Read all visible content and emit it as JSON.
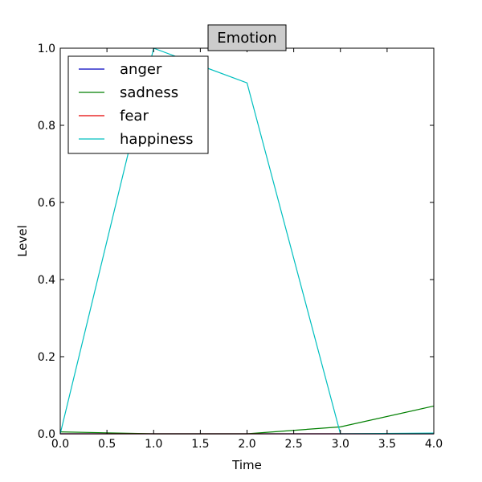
{
  "chart_data": {
    "type": "line",
    "title": "Emotion",
    "xlabel": "Time",
    "ylabel": "Level",
    "xlim": [
      0.0,
      4.0
    ],
    "ylim": [
      0.0,
      1.0
    ],
    "xticks": [
      "0.0",
      "0.5",
      "1.0",
      "1.5",
      "2.0",
      "2.5",
      "3.0",
      "3.5",
      "4.0"
    ],
    "yticks": [
      "0.0",
      "0.2",
      "0.4",
      "0.6",
      "0.8",
      "1.0"
    ],
    "grid": false,
    "legend_position": "top-left",
    "x": [
      0.0,
      1.0,
      2.0,
      3.0,
      4.0
    ],
    "series": [
      {
        "name": "anger",
        "color": "#0000bf",
        "values": [
          0.0,
          0.0,
          0.0,
          0.0,
          0.0
        ]
      },
      {
        "name": "sadness",
        "color": "#007f00",
        "values": [
          0.005,
          0.0,
          0.0,
          0.018,
          0.072
        ]
      },
      {
        "name": "fear",
        "color": "#e50000",
        "values": [
          0.0,
          0.0,
          0.0,
          0.0,
          0.0
        ]
      },
      {
        "name": "happiness",
        "color": "#00bfbf",
        "values": [
          0.0,
          1.0,
          0.91,
          0.0,
          0.002
        ]
      }
    ]
  }
}
